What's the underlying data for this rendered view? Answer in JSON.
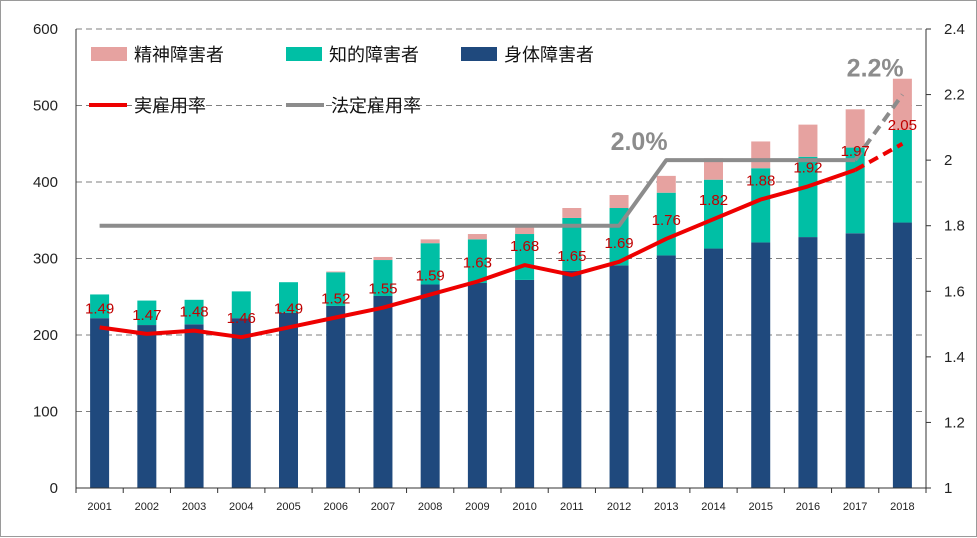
{
  "chart_data": {
    "type": "bar",
    "stacked": true,
    "categories": [
      "2001",
      "2002",
      "2003",
      "2004",
      "2005",
      "2006",
      "2007",
      "2008",
      "2009",
      "2010",
      "2011",
      "2012",
      "2013",
      "2014",
      "2015",
      "2016",
      "2017",
      "2018"
    ],
    "series": [
      {
        "name": "身体障害者",
        "color": "#1f497d",
        "values": [
          222,
          213,
          214,
          222,
          229,
          238,
          251,
          266,
          268,
          272,
          284,
          291,
          304,
          313,
          321,
          328,
          333,
          347
        ]
      },
      {
        "name": "知的障害者",
        "color": "#00bfa5",
        "values": [
          31,
          32,
          32,
          35,
          40,
          44,
          47,
          54,
          57,
          60,
          69,
          75,
          82,
          90,
          97,
          105,
          112,
          121
        ]
      },
      {
        "name": "精神障害者",
        "color": "#e6a2a0",
        "values": [
          0,
          0,
          0,
          0,
          0,
          1,
          4,
          5,
          7,
          10,
          13,
          17,
          22,
          28,
          35,
          42,
          50,
          67
        ]
      }
    ],
    "lines": [
      {
        "name": "実雇用率",
        "color": "#ee0000",
        "axis": "right",
        "values": [
          1.49,
          1.47,
          1.48,
          1.46,
          1.49,
          1.52,
          1.55,
          1.59,
          1.63,
          1.68,
          1.65,
          1.69,
          1.76,
          1.82,
          1.88,
          1.92,
          1.97,
          2.05
        ],
        "labels": [
          "1.49",
          "1.47",
          "1.48",
          "1.46",
          "1.49",
          "1.52",
          "1.55",
          "1.59",
          "1.63",
          "1.68",
          "1.65",
          "1.69",
          "1.76",
          "1.82",
          "1.88",
          "1.92",
          "1.97",
          "2.05"
        ],
        "dashed_from": "2017"
      },
      {
        "name": "法定雇用率",
        "color": "#8c8c8c",
        "axis": "right",
        "points": [
          [
            "2001",
            1.8
          ],
          [
            "2012",
            1.8
          ],
          [
            "2013",
            2.0
          ],
          [
            "2017",
            2.0
          ],
          [
            "2018",
            2.2
          ]
        ],
        "dashed_from": "2017"
      }
    ],
    "annotations": [
      "2.0%",
      "2.2%"
    ],
    "ylim": [
      0,
      600
    ],
    "yticks": [
      "0",
      "100",
      "200",
      "300",
      "400",
      "500",
      "600"
    ],
    "y2lim": [
      1,
      2.4
    ],
    "y2ticks": [
      "1",
      "1.2",
      "1.4",
      "1.6",
      "1.8",
      "2",
      "2.2",
      "2.4"
    ],
    "grid": "dashed horizontal",
    "legend": "top-left"
  }
}
